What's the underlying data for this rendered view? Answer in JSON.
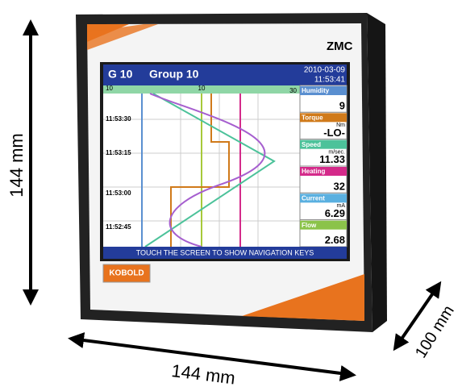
{
  "dimensions": {
    "height": "144 mm",
    "width": "144 mm",
    "depth": "100 mm"
  },
  "device": {
    "model": "ZMC",
    "brand": "KOBOLD"
  },
  "screen": {
    "group_id": "G 10",
    "group_name": "Group 10",
    "date": "2010-03-09",
    "time": "11:53:41",
    "scale": [
      "10",
      "10",
      "30"
    ],
    "times": [
      "11:53:30",
      "11:53:15",
      "11:53:00",
      "11:52:45"
    ],
    "channels": [
      {
        "name": "Humidity",
        "unit": "",
        "value": "9"
      },
      {
        "name": "Torque",
        "unit": "Nm",
        "value": "-LO-"
      },
      {
        "name": "Speed",
        "unit": "m/sec.",
        "value": "11.33"
      },
      {
        "name": "Heating",
        "unit": "",
        "value": "32"
      },
      {
        "name": "Current",
        "unit": "mA",
        "value": "6.29"
      },
      {
        "name": "Flow",
        "unit": "",
        "value": "2.68"
      }
    ],
    "footer": "TOUCH THE SCREEN TO SHOW NAVIGATION KEYS"
  }
}
